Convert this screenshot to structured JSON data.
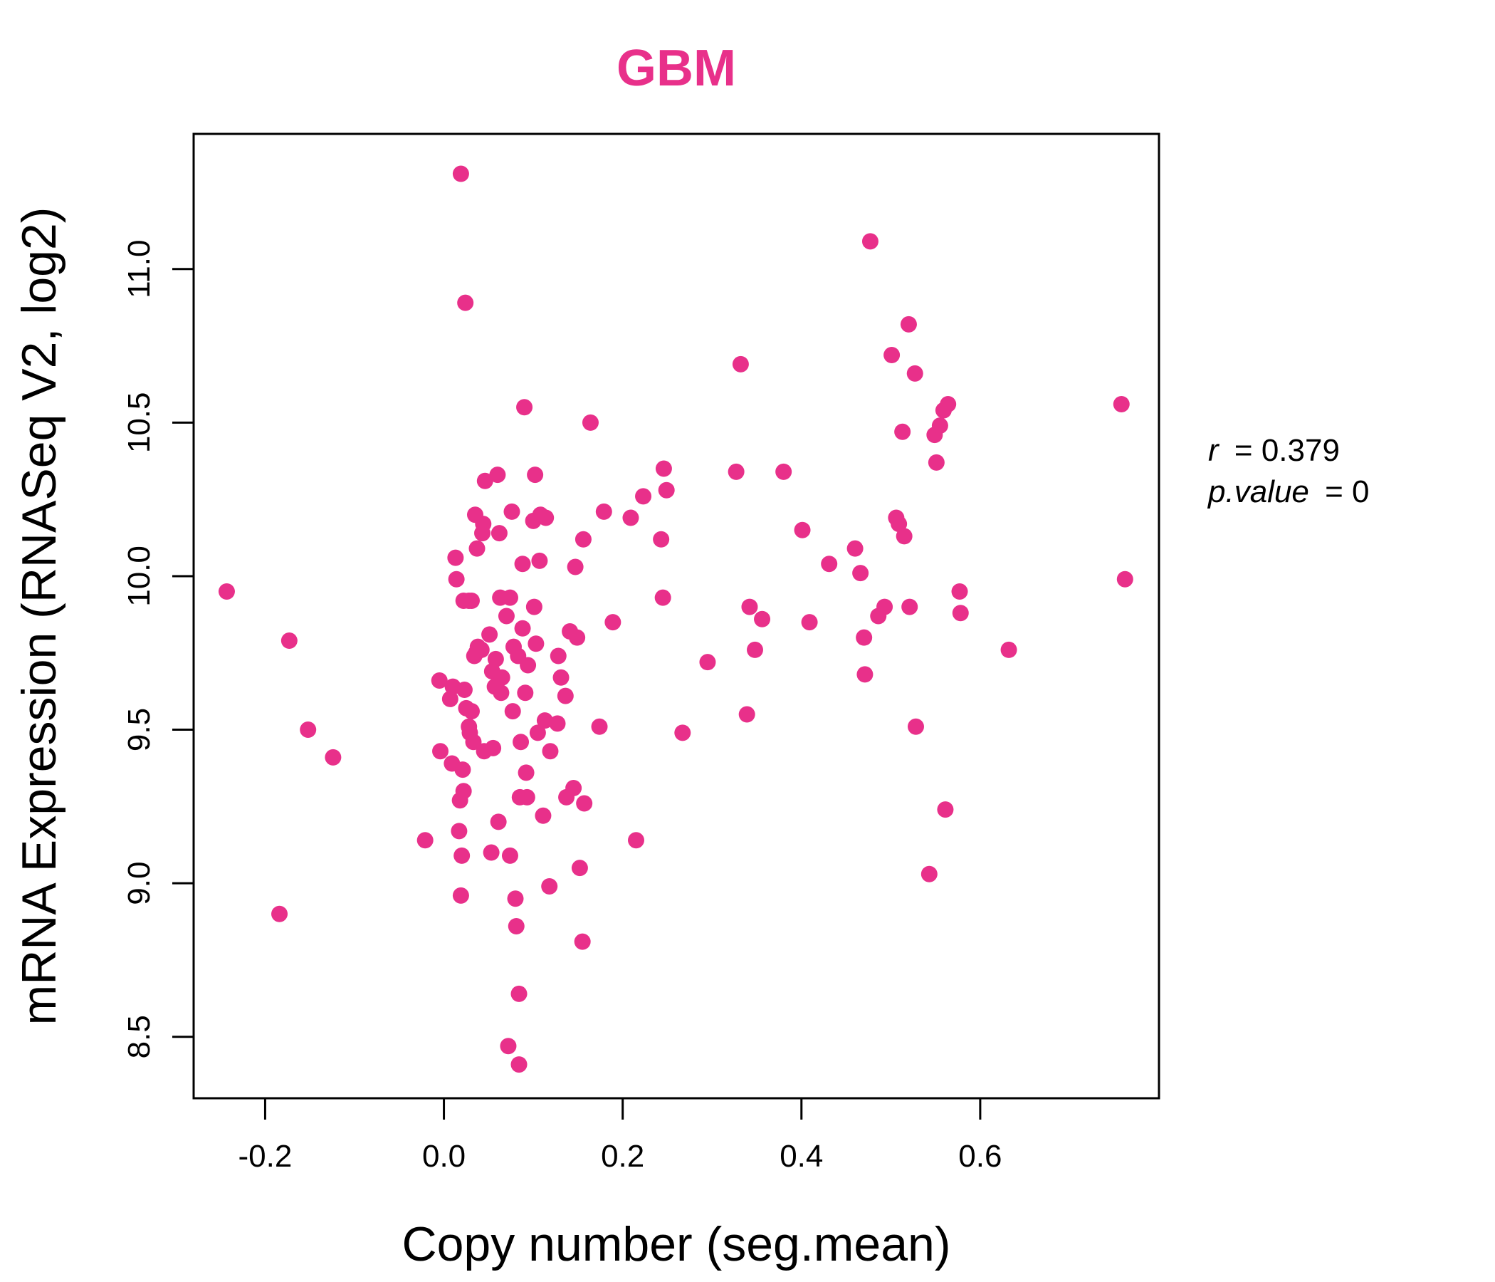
{
  "chart_data": {
    "type": "scatter",
    "title": "GBM",
    "xlabel": "Copy number (seg.mean)",
    "ylabel": "mRNA Expression (RNASeq V2, log2)",
    "xlim": [
      -0.28,
      0.8
    ],
    "ylim": [
      8.3,
      11.44
    ],
    "xticks": [
      "-0.2",
      "0.0",
      "0.2",
      "0.4",
      "0.6"
    ],
    "yticks": [
      "8.5",
      "9.0",
      "9.5",
      "10.0",
      "10.5",
      "11.0"
    ],
    "grid": false,
    "legend": "none",
    "colors": {
      "point": "#e8308a",
      "title": "#e8308a",
      "axis": "#000000"
    },
    "stats": {
      "r_label": "r",
      "r_value": "0.379",
      "p_label": "p.value",
      "p_value": "0"
    },
    "points": [
      [
        -0.243,
        9.95
      ],
      [
        -0.173,
        9.79
      ],
      [
        -0.152,
        9.5
      ],
      [
        -0.124,
        9.41
      ],
      [
        -0.184,
        8.9
      ],
      [
        -0.021,
        9.14
      ],
      [
        -0.005,
        9.66
      ],
      [
        -0.004,
        9.43
      ],
      [
        0.007,
        9.6
      ],
      [
        0.009,
        9.39
      ],
      [
        0.01,
        9.64
      ],
      [
        0.013,
        10.06
      ],
      [
        0.014,
        9.99
      ],
      [
        0.017,
        9.17
      ],
      [
        0.018,
        9.27
      ],
      [
        0.019,
        8.96
      ],
      [
        0.02,
        9.09
      ],
      [
        0.021,
        9.37
      ],
      [
        0.022,
        9.3
      ],
      [
        0.022,
        9.92
      ],
      [
        0.023,
        9.63
      ],
      [
        0.025,
        9.57
      ],
      [
        0.028,
        9.92
      ],
      [
        0.028,
        9.51
      ],
      [
        0.029,
        9.49
      ],
      [
        0.031,
        9.92
      ],
      [
        0.031,
        9.56
      ],
      [
        0.033,
        9.46
      ],
      [
        0.034,
        9.74
      ],
      [
        0.035,
        10.2
      ],
      [
        0.036,
        9.75
      ],
      [
        0.037,
        10.09
      ],
      [
        0.038,
        9.77
      ],
      [
        0.042,
        9.76
      ],
      [
        0.043,
        10.14
      ],
      [
        0.044,
        10.17
      ],
      [
        0.045,
        9.43
      ],
      [
        0.046,
        10.31
      ],
      [
        0.051,
        9.81
      ],
      [
        0.053,
        9.1
      ],
      [
        0.054,
        9.69
      ],
      [
        0.055,
        9.44
      ],
      [
        0.057,
        9.64
      ],
      [
        0.058,
        9.73
      ],
      [
        0.06,
        10.33
      ],
      [
        0.061,
        9.2
      ],
      [
        0.062,
        10.14
      ],
      [
        0.063,
        9.93
      ],
      [
        0.064,
        9.62
      ],
      [
        0.065,
        9.67
      ],
      [
        0.07,
        9.87
      ],
      [
        0.072,
        8.47
      ],
      [
        0.074,
        9.93
      ],
      [
        0.074,
        9.09
      ],
      [
        0.076,
        10.21
      ],
      [
        0.077,
        9.56
      ],
      [
        0.078,
        9.77
      ],
      [
        0.08,
        8.95
      ],
      [
        0.081,
        8.86
      ],
      [
        0.083,
        9.74
      ],
      [
        0.084,
        8.64
      ],
      [
        0.084,
        8.41
      ],
      [
        0.085,
        9.28
      ],
      [
        0.086,
        9.46
      ],
      [
        0.088,
        10.04
      ],
      [
        0.088,
        9.83
      ],
      [
        0.09,
        10.55
      ],
      [
        0.091,
        9.62
      ],
      [
        0.092,
        9.36
      ],
      [
        0.093,
        9.28
      ],
      [
        0.094,
        9.71
      ],
      [
        0.1,
        10.18
      ],
      [
        0.101,
        9.9
      ],
      [
        0.102,
        10.33
      ],
      [
        0.103,
        9.78
      ],
      [
        0.105,
        9.49
      ],
      [
        0.107,
        10.05
      ],
      [
        0.108,
        10.2
      ],
      [
        0.111,
        9.22
      ],
      [
        0.113,
        9.53
      ],
      [
        0.114,
        10.19
      ],
      [
        0.118,
        8.99
      ],
      [
        0.119,
        9.43
      ],
      [
        0.127,
        9.52
      ],
      [
        0.128,
        9.74
      ],
      [
        0.131,
        9.67
      ],
      [
        0.136,
        9.61
      ],
      [
        0.137,
        9.28
      ],
      [
        0.141,
        9.82
      ],
      [
        0.145,
        9.31
      ],
      [
        0.147,
        10.03
      ],
      [
        0.149,
        9.8
      ],
      [
        0.152,
        9.05
      ],
      [
        0.155,
        8.81
      ],
      [
        0.156,
        10.12
      ],
      [
        0.157,
        9.26
      ],
      [
        0.164,
        10.5
      ],
      [
        0.174,
        9.51
      ],
      [
        0.179,
        10.21
      ],
      [
        0.189,
        9.85
      ],
      [
        0.209,
        10.19
      ],
      [
        0.215,
        9.14
      ],
      [
        0.223,
        10.26
      ],
      [
        0.243,
        10.12
      ],
      [
        0.245,
        9.93
      ],
      [
        0.246,
        10.35
      ],
      [
        0.249,
        10.28
      ],
      [
        0.267,
        9.49
      ],
      [
        0.295,
        9.72
      ],
      [
        0.327,
        10.34
      ],
      [
        0.332,
        10.69
      ],
      [
        0.339,
        9.55
      ],
      [
        0.342,
        9.9
      ],
      [
        0.348,
        9.76
      ],
      [
        0.356,
        9.86
      ],
      [
        0.38,
        10.34
      ],
      [
        0.401,
        10.15
      ],
      [
        0.409,
        9.85
      ],
      [
        0.431,
        10.04
      ],
      [
        0.46,
        10.09
      ],
      [
        0.466,
        10.01
      ],
      [
        0.47,
        9.8
      ],
      [
        0.471,
        9.68
      ],
      [
        0.477,
        11.09
      ],
      [
        0.486,
        9.87
      ],
      [
        0.493,
        9.9
      ],
      [
        0.501,
        10.72
      ],
      [
        0.506,
        10.19
      ],
      [
        0.509,
        10.17
      ],
      [
        0.513,
        10.47
      ],
      [
        0.515,
        10.13
      ],
      [
        0.52,
        10.82
      ],
      [
        0.521,
        9.9
      ],
      [
        0.527,
        10.66
      ],
      [
        0.528,
        9.51
      ],
      [
        0.543,
        9.03
      ],
      [
        0.549,
        10.46
      ],
      [
        0.551,
        10.37
      ],
      [
        0.555,
        10.49
      ],
      [
        0.559,
        10.54
      ],
      [
        0.561,
        9.24
      ],
      [
        0.564,
        10.56
      ],
      [
        0.577,
        9.95
      ],
      [
        0.578,
        9.88
      ],
      [
        0.632,
        9.76
      ],
      [
        0.758,
        10.56
      ],
      [
        0.762,
        9.99
      ],
      [
        0.019,
        11.31
      ],
      [
        0.024,
        10.89
      ]
    ]
  }
}
